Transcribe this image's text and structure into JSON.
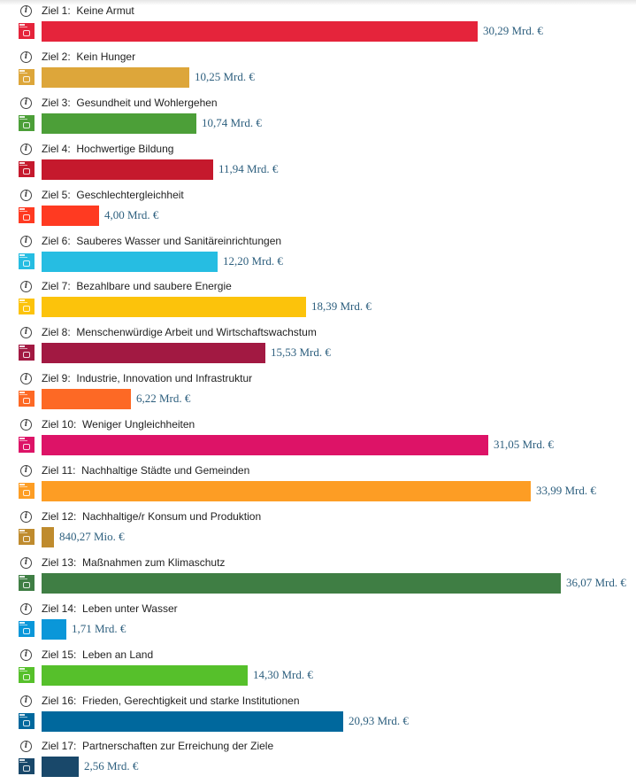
{
  "chart_data": {
    "type": "bar",
    "orientation": "horizontal",
    "unit": "Mrd. €",
    "xlim": [
      0,
      36.07
    ],
    "items": [
      {
        "info": "i",
        "prefix": "Ziel 1:",
        "name": "Keine Armut",
        "value": 30.29,
        "value_label": "30,29 Mrd. €",
        "color": "#E5243B"
      },
      {
        "info": "i",
        "prefix": "Ziel 2:",
        "name": "Kein Hunger",
        "value": 10.25,
        "value_label": "10,25 Mrd. €",
        "color": "#DDA63A"
      },
      {
        "info": "i",
        "prefix": "Ziel 3:",
        "name": "Gesundheit und Wohlergehen",
        "value": 10.74,
        "value_label": "10,74 Mrd. €",
        "color": "#4C9F38"
      },
      {
        "info": "i",
        "prefix": "Ziel 4:",
        "name": "Hochwertige Bildung",
        "value": 11.94,
        "value_label": "11,94 Mrd. €",
        "color": "#C5192D"
      },
      {
        "info": "i",
        "prefix": "Ziel 5:",
        "name": "Geschlechtergleichheit",
        "value": 4.0,
        "value_label": "4,00 Mrd. €",
        "color": "#FF3A21"
      },
      {
        "info": "i",
        "prefix": "Ziel 6:",
        "name": "Sauberes Wasser und Sanitäreinrichtungen",
        "value": 12.2,
        "value_label": "12,20 Mrd. €",
        "color": "#26BDE2"
      },
      {
        "info": "i",
        "prefix": "Ziel 7:",
        "name": "Bezahlbare und saubere Energie",
        "value": 18.39,
        "value_label": "18,39 Mrd. €",
        "color": "#FCC30B"
      },
      {
        "info": "i",
        "prefix": "Ziel 8:",
        "name": "Menschenwürdige Arbeit und Wirtschaftswachstum",
        "value": 15.53,
        "value_label": "15,53 Mrd. €",
        "color": "#A21942"
      },
      {
        "info": "i",
        "prefix": "Ziel 9:",
        "name": "Industrie, Innovation und Infrastruktur",
        "value": 6.22,
        "value_label": "6,22 Mrd. €",
        "color": "#FD6925"
      },
      {
        "info": "i",
        "prefix": "Ziel 10:",
        "name": "Weniger Ungleichheiten",
        "value": 31.05,
        "value_label": "31,05 Mrd. €",
        "color": "#DD1367"
      },
      {
        "info": "i",
        "prefix": "Ziel 11:",
        "name": "Nachhaltige Städte und Gemeinden",
        "value": 33.99,
        "value_label": "33,99 Mrd. €",
        "color": "#FD9D24"
      },
      {
        "info": "i",
        "prefix": "Ziel 12:",
        "name": "Nachhaltige/r Konsum und Produktion",
        "value": 0.84027,
        "value_label": "840,27 Mio. €",
        "color": "#BF8B2E"
      },
      {
        "info": "i",
        "prefix": "Ziel 13:",
        "name": "Maßnahmen zum Klimaschutz",
        "value": 36.07,
        "value_label": "36,07 Mrd. €",
        "color": "#3F7E44"
      },
      {
        "info": "i",
        "prefix": "Ziel 14:",
        "name": "Leben unter Wasser",
        "value": 1.71,
        "value_label": "1,71 Mrd. €",
        "color": "#0A97D9"
      },
      {
        "info": "i",
        "prefix": "Ziel 15:",
        "name": "Leben an Land",
        "value": 14.3,
        "value_label": "14,30 Mrd. €",
        "color": "#56C02B"
      },
      {
        "info": "i",
        "prefix": "Ziel 16:",
        "name": "Frieden, Gerechtigkeit und starke Institutionen",
        "value": 20.93,
        "value_label": "20,93 Mrd. €",
        "color": "#00689D"
      },
      {
        "info": "i",
        "prefix": "Ziel 17:",
        "name": "Partnerschaften zur Erreichung der Ziele",
        "value": 2.56,
        "value_label": "2,56 Mrd. €",
        "color": "#19486A"
      }
    ]
  }
}
